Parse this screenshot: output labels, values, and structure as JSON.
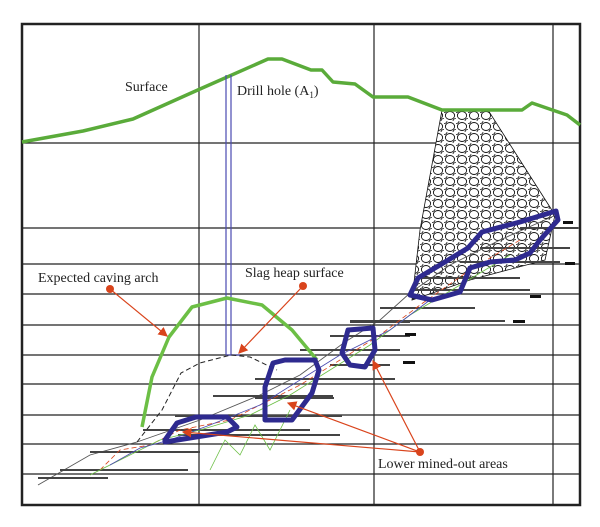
{
  "labels": {
    "surface": "Surface",
    "drill_hole": "Drill hole (A",
    "drill_hole_sub": "1",
    "drill_hole_close": ")",
    "caving_arch": "Expected caving arch",
    "slag_heap": "Slag heap surface",
    "mined_out": "Lower mined-out areas"
  },
  "colors": {
    "surface_line": "#5aab3a",
    "caving_arch": "#6cbf45",
    "mined_out_outline": "#2e2a8f",
    "drill_hole": "#4a4ab0",
    "annotation_arrow": "#d9441c",
    "grid": "#222222"
  }
}
